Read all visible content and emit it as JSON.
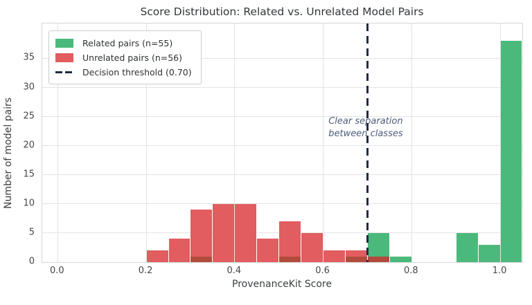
{
  "chart_data": {
    "type": "histogram",
    "title": "Score Distribution: Related vs. Unrelated Model Pairs",
    "xlabel": "ProvenanceKit Score",
    "ylabel": "Number of model pairs",
    "xlim": [
      -0.035,
      1.05
    ],
    "ylim": [
      0,
      41
    ],
    "x_ticks": [
      0.0,
      0.2,
      0.4,
      0.6,
      0.8,
      1.0
    ],
    "y_ticks": [
      0,
      5,
      10,
      15,
      20,
      25,
      30,
      35
    ],
    "grid": true,
    "legend_position": "upper-left",
    "bin_start": 0.2,
    "bin_width": 0.05,
    "series": [
      {
        "name": "Related pairs (n=55)",
        "key": "related",
        "color": "#4bb97c",
        "counts": [
          0,
          0,
          1,
          0,
          0,
          0,
          1,
          0,
          0,
          1,
          5,
          1,
          0,
          0,
          5,
          3,
          38
        ]
      },
      {
        "name": "Unrelated pairs (n=56)",
        "key": "unrelated",
        "color": "#e15d5f",
        "counts": [
          2,
          4,
          9,
          10,
          10,
          4,
          7,
          5,
          2,
          2,
          1,
          0,
          0,
          0,
          0,
          0,
          0
        ]
      }
    ],
    "overlap_color": "#b24b3d",
    "threshold": {
      "value": 0.7,
      "label": "Decision threshold (0.70)",
      "color": "#1f2a44",
      "style": "dashed"
    },
    "annotation": {
      "line1": "Clear separation",
      "line2": "between classes",
      "x": 0.612,
      "y": 25.2,
      "color": "#4d5c7c"
    }
  }
}
